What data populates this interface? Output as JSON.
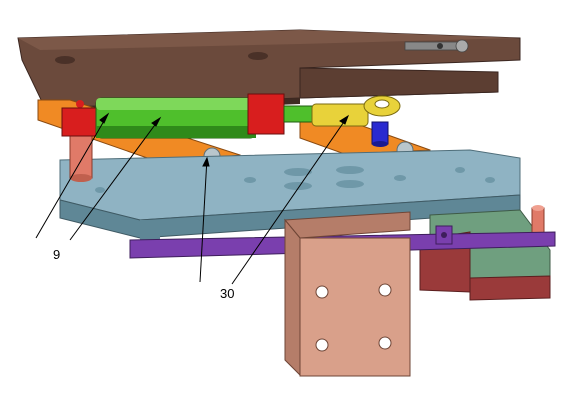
{
  "figure": {
    "callouts": [
      {
        "id": "9",
        "label": "9"
      },
      {
        "id": "30",
        "label": "30"
      }
    ],
    "colors": {
      "top_plate": "#6b4a3c",
      "top_plate_dark": "#4a3128",
      "cylinder": "#4fbf2c",
      "cylinder_dark": "#2f8a1a",
      "end_cap": "#d81e1e",
      "rod_end": "#e8d23a",
      "pin": "#2a2ad0",
      "arm": "#f08a24",
      "arm_light": "#f7c23a",
      "base_plate": "#8fb3c3",
      "base_plate_dark": "#5f8796",
      "bar": "#7a3fae",
      "bracket": "#d9a08a",
      "bracket_dark": "#b57d69",
      "side_block": "#9a3a3a",
      "side_block_green": "#6f9f7f",
      "post": "#e07a68"
    }
  }
}
